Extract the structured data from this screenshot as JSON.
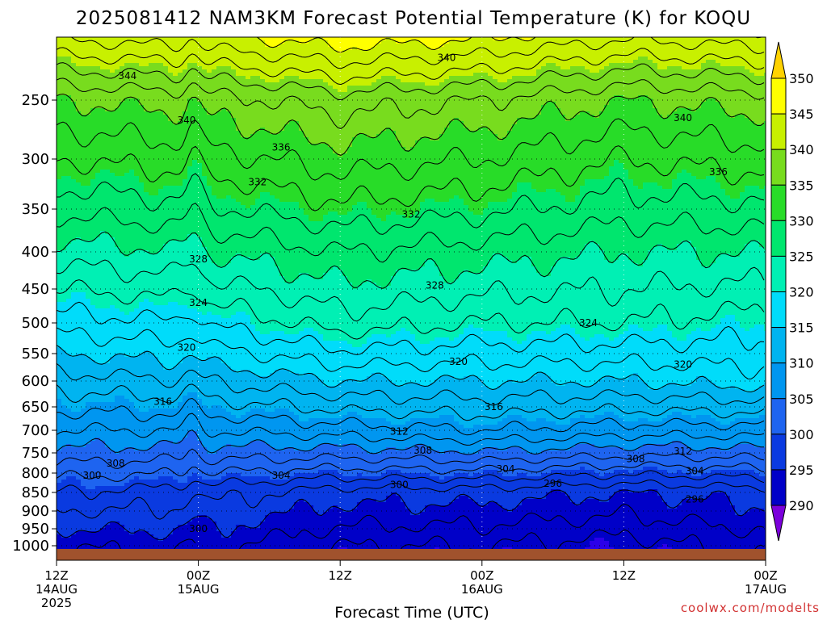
{
  "chart_data": {
    "type": "contour",
    "title": "2025081412 NAM3KM Forecast Potential Temperature (K) for KOQU",
    "xlabel": "Forecast Time (UTC)",
    "ylabel": "",
    "credit": "coolwx.com/modelts",
    "x_range_hours": [
      0,
      60
    ],
    "y_range_hpa": [
      200,
      1025
    ],
    "x_ticks": [
      {
        "hour": 0,
        "line1": "12Z",
        "line2": "14AUG",
        "line3": "2025"
      },
      {
        "hour": 12,
        "line1": "00Z",
        "line2": "15AUG",
        "line3": ""
      },
      {
        "hour": 24,
        "line1": "12Z",
        "line2": "",
        "line3": ""
      },
      {
        "hour": 36,
        "line1": "00Z",
        "line2": "16AUG",
        "line3": ""
      },
      {
        "hour": 48,
        "line1": "12Z",
        "line2": "",
        "line3": ""
      },
      {
        "hour": 60,
        "line1": "00Z",
        "line2": "17AUG",
        "line3": ""
      }
    ],
    "y_ticks": [
      250,
      300,
      350,
      400,
      450,
      500,
      550,
      600,
      650,
      700,
      750,
      800,
      850,
      900,
      950,
      1000
    ],
    "y_tick_labels": [
      "250",
      "300",
      "350",
      "400",
      "450",
      "500",
      "550",
      "600",
      "650",
      "700",
      "750",
      "800",
      "850",
      "900",
      "950",
      "1000"
    ],
    "colorbar": {
      "levels": [
        290,
        295,
        300,
        305,
        310,
        315,
        320,
        325,
        330,
        335,
        340,
        345,
        350
      ],
      "labels": [
        "290",
        "295",
        "300",
        "305",
        "310",
        "315",
        "320",
        "325",
        "330",
        "335",
        "340",
        "345",
        "350"
      ],
      "colors": [
        "#7b00dc",
        "#2b00e8",
        "#0000c8",
        "#0a3ae0",
        "#1e64f0",
        "#0096f0",
        "#00b4f0",
        "#00dcfa",
        "#00f0b4",
        "#00e66e",
        "#28dc28",
        "#78dc1e",
        "#c8f000",
        "#ffff00",
        "#ffd200"
      ]
    },
    "contour_interval_K": 2,
    "contour_labels": [
      "344",
      "340",
      "340",
      "336",
      "340",
      "332",
      "336",
      "332",
      "328",
      "328",
      "324",
      "324",
      "320",
      "320",
      "320",
      "316",
      "316",
      "312",
      "312",
      "308",
      "308",
      "308",
      "304",
      "304",
      "304",
      "300",
      "300",
      "296",
      "296",
      "300"
    ],
    "series": [
      {
        "name": "",
        "values": [
          [
            0,
            1000,
            298
          ],
          [
            12,
            1000,
            299
          ],
          [
            24,
            1000,
            296
          ],
          [
            36,
            1000,
            296
          ],
          [
            48,
            1000,
            295
          ],
          [
            60,
            1000,
            297
          ]
        ]
      },
      {
        "name": "",
        "values": [
          [
            0,
            850,
            304
          ],
          [
            12,
            850,
            303
          ],
          [
            24,
            850,
            301
          ],
          [
            36,
            850,
            301
          ],
          [
            48,
            850,
            300
          ],
          [
            60,
            850,
            301
          ]
        ]
      },
      {
        "name": "",
        "values": [
          [
            0,
            700,
            312
          ],
          [
            12,
            700,
            312
          ],
          [
            24,
            700,
            313
          ],
          [
            36,
            700,
            314
          ],
          [
            48,
            700,
            313
          ],
          [
            60,
            700,
            313
          ]
        ]
      },
      {
        "name": "",
        "values": [
          [
            0,
            600,
            317
          ],
          [
            12,
            600,
            318
          ],
          [
            24,
            600,
            320
          ],
          [
            36,
            600,
            320
          ],
          [
            48,
            600,
            320
          ],
          [
            60,
            600,
            321
          ]
        ]
      },
      {
        "name": "",
        "values": [
          [
            0,
            500,
            323
          ],
          [
            12,
            500,
            324
          ],
          [
            24,
            500,
            327
          ],
          [
            36,
            500,
            326
          ],
          [
            48,
            500,
            326
          ],
          [
            60,
            500,
            325
          ]
        ]
      },
      {
        "name": "",
        "values": [
          [
            0,
            400,
            329
          ],
          [
            12,
            400,
            330
          ],
          [
            24,
            400,
            332
          ],
          [
            36,
            400,
            331
          ],
          [
            48,
            400,
            330
          ],
          [
            60,
            400,
            330
          ]
        ]
      },
      {
        "name": "",
        "values": [
          [
            0,
            300,
            336
          ],
          [
            12,
            300,
            337
          ],
          [
            24,
            300,
            339
          ],
          [
            36,
            300,
            338
          ],
          [
            48,
            300,
            336
          ],
          [
            60,
            300,
            337
          ]
        ]
      },
      {
        "name": "",
        "values": [
          [
            0,
            250,
            340
          ],
          [
            12,
            250,
            341
          ],
          [
            24,
            250,
            343
          ],
          [
            36,
            250,
            342
          ],
          [
            48,
            250,
            340
          ],
          [
            60,
            250,
            341
          ]
        ]
      }
    ]
  }
}
